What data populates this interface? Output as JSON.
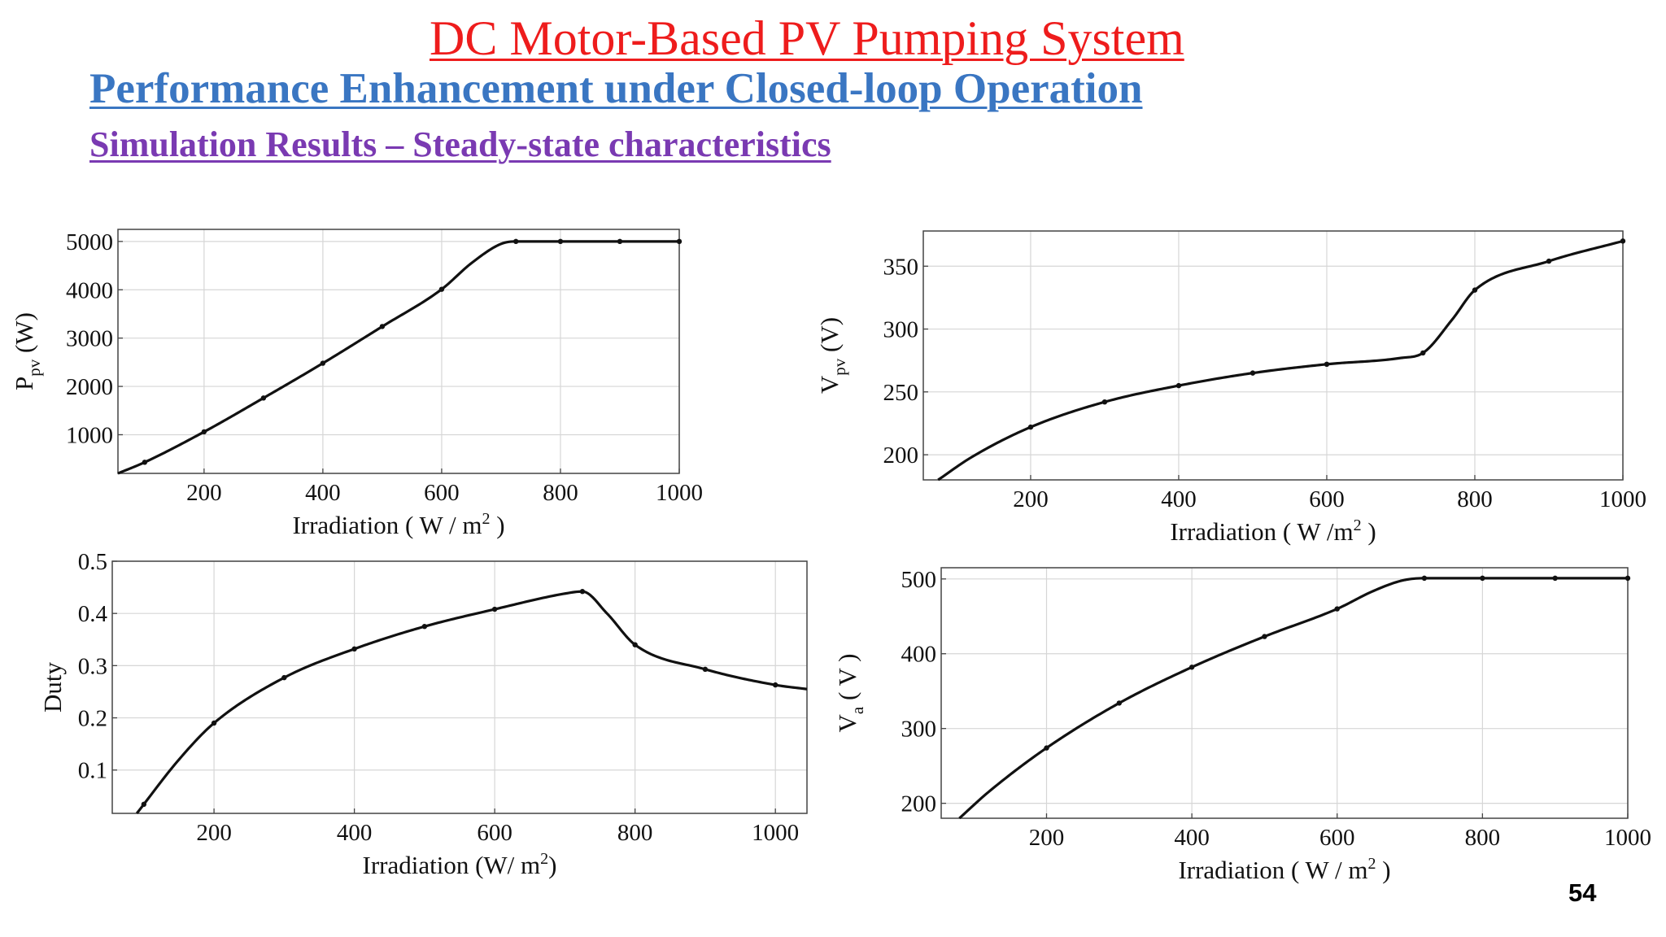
{
  "slide": {
    "title": "DC Motor-Based PV Pumping System",
    "subtitle": "Performance Enhancement under Closed-loop Operation",
    "section": "Simulation Results – Steady-state characteristics",
    "page_number": "54",
    "colors": {
      "title": "#ee1c1c",
      "subtitle": "#3a76c2",
      "section": "#7a3ab2",
      "curve": "#111111",
      "grid": "#d6d6d6"
    }
  },
  "chart_data": [
    {
      "type": "line",
      "xlabel": {
        "base": "Irradiation ( W / m",
        "sup": "2",
        "tail": " )"
      },
      "ylabel": {
        "base": "P",
        "sub": "pv",
        "tail": " (W)"
      },
      "xlim": [
        55,
        1000
      ],
      "ylim": [
        200,
        5250
      ],
      "xticks": [
        200,
        400,
        600,
        800,
        1000
      ],
      "yticks": [
        1000,
        2000,
        3000,
        4000,
        5000
      ],
      "grid": true,
      "x": [
        55,
        100,
        200,
        300,
        400,
        500,
        600,
        650,
        700,
        725,
        800,
        900,
        1000
      ],
      "y": [
        200,
        430,
        1060,
        1760,
        2480,
        3240,
        4010,
        4550,
        4950,
        5000,
        5000,
        5000,
        5000
      ],
      "markers": [
        100,
        200,
        300,
        400,
        500,
        600,
        725,
        800,
        900,
        1000
      ]
    },
    {
      "type": "line",
      "xlabel": {
        "base": "Irradiation ( W /m",
        "sup": "2",
        "tail": " )"
      },
      "ylabel": {
        "base": "V",
        "sub": "pv",
        "tail": " (V)"
      },
      "xlim": [
        55,
        1000
      ],
      "ylim": [
        180,
        378
      ],
      "xticks": [
        200,
        400,
        600,
        800,
        1000
      ],
      "yticks": [
        200,
        250,
        300,
        350
      ],
      "grid": true,
      "x": [
        75,
        120,
        200,
        300,
        400,
        500,
        600,
        700,
        730,
        770,
        800,
        900,
        1000
      ],
      "y": [
        180,
        198,
        222,
        242,
        255,
        265,
        272,
        277,
        281,
        308,
        331,
        354,
        370
      ],
      "markers": [
        200,
        300,
        400,
        500,
        600,
        730,
        800,
        900,
        1000
      ]
    },
    {
      "type": "line",
      "xlabel": {
        "base": "Irradiation (W/ m",
        "sup": "2",
        "tail": ")"
      },
      "ylabel": {
        "base": "Duty",
        "sub": "",
        "tail": ""
      },
      "xlim": [
        55,
        1045
      ],
      "ylim": [
        0.017,
        0.5
      ],
      "xticks": [
        200,
        400,
        600,
        800,
        1000
      ],
      "yticks": [
        0.1,
        0.2,
        0.3,
        0.4,
        0.5
      ],
      "grid": true,
      "x": [
        90,
        150,
        200,
        300,
        400,
        500,
        600,
        700,
        725,
        760,
        800,
        900,
        1000,
        1045
      ],
      "y": [
        0.017,
        0.12,
        0.19,
        0.277,
        0.332,
        0.375,
        0.408,
        0.438,
        0.442,
        0.4,
        0.34,
        0.293,
        0.263,
        0.255
      ],
      "markers": [
        100,
        200,
        300,
        400,
        500,
        600,
        725,
        800,
        900,
        1000
      ]
    },
    {
      "type": "line",
      "xlabel": {
        "base": "Irradiation ( W / m",
        "sup": "2",
        "tail": " )"
      },
      "ylabel": {
        "base": "V",
        "sub": "a",
        "tail": " ( V )"
      },
      "xlim": [
        55,
        1000
      ],
      "ylim": [
        180,
        515
      ],
      "xticks": [
        200,
        400,
        600,
        800,
        1000
      ],
      "yticks": [
        200,
        300,
        400,
        500
      ],
      "grid": true,
      "x": [
        80,
        120,
        200,
        300,
        400,
        500,
        600,
        650,
        690,
        720,
        800,
        900,
        1000
      ],
      "y": [
        180,
        215,
        274,
        334,
        382,
        423,
        460,
        484,
        498,
        501,
        501,
        501,
        501
      ],
      "markers": [
        200,
        300,
        400,
        500,
        600,
        720,
        800,
        900,
        1000
      ]
    }
  ]
}
